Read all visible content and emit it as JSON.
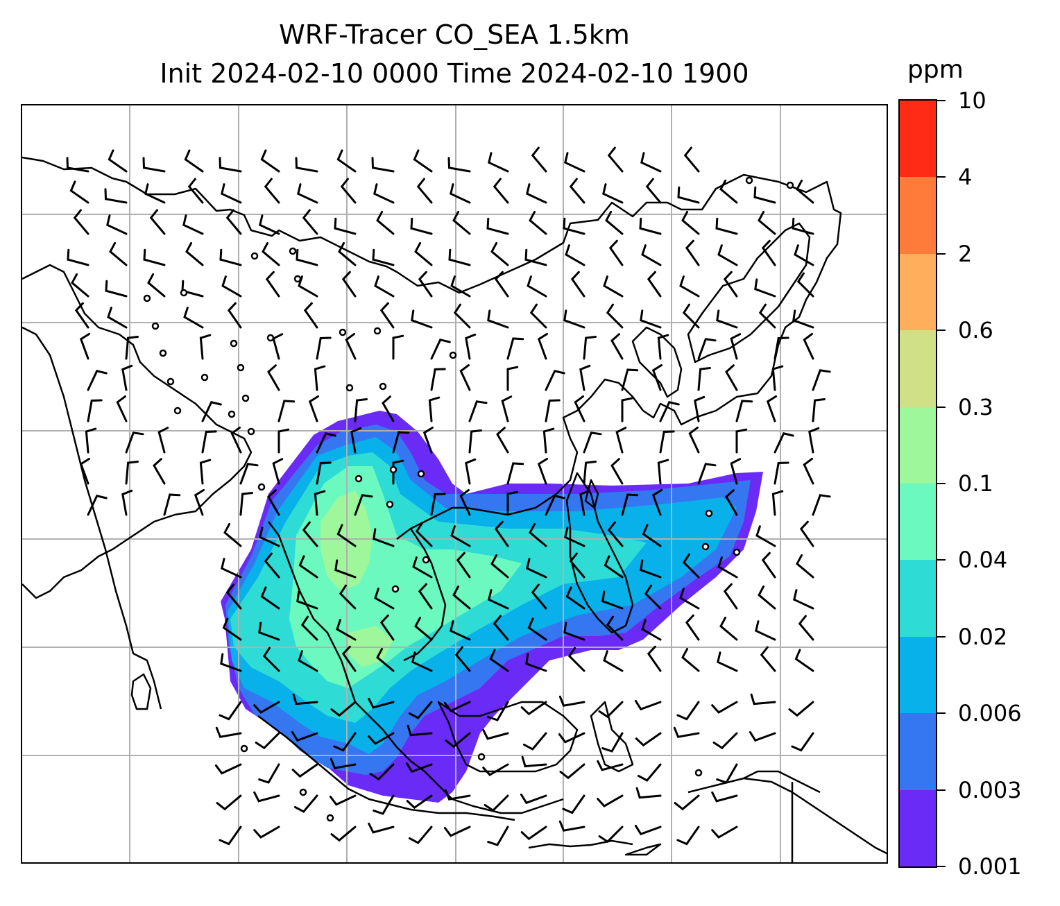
{
  "title": {
    "line1": "WRF-Tracer CO_SEA 1.5km",
    "line2": "Init 2024-02-10 0000 Time 2024-02-10 1900"
  },
  "colorbar": {
    "unit": "ppm",
    "levels": [
      "0.001",
      "0.003",
      "0.006",
      "0.02",
      "0.04",
      "0.1",
      "0.3",
      "0.6",
      "2",
      "4",
      "10"
    ],
    "colors": [
      "#6a2bf7",
      "#3577f1",
      "#08b1e9",
      "#2fdcd5",
      "#6bf9bf",
      "#9ef79a",
      "#d0e086",
      "#ffae5c",
      "#ff7b3a",
      "#ff2b17"
    ]
  },
  "map": {
    "coastline_color": "#000000",
    "grid_color": "#b0b0b0",
    "tracer_plume_levels": [
      "0.001",
      "0.003",
      "0.006",
      "0.02",
      "0.04",
      "0.1"
    ],
    "wind_barbs": "shown",
    "calm_circles": "shown"
  }
}
